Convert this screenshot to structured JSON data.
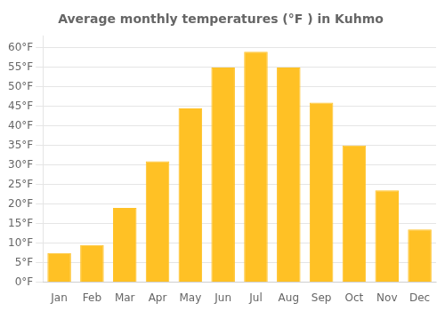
{
  "chart_data": {
    "type": "bar",
    "title": "Average monthly temperatures (°F ) in Kuhmo",
    "categories": [
      "Jan",
      "Feb",
      "Mar",
      "Apr",
      "May",
      "Jun",
      "Jul",
      "Aug",
      "Sep",
      "Oct",
      "Nov",
      "Dec"
    ],
    "values": [
      7.5,
      9.5,
      19,
      31,
      44.5,
      55,
      59,
      55,
      46,
      35,
      23.5,
      13.5
    ],
    "color": "#FFC125",
    "ylim": [
      0,
      63
    ],
    "yticks": [
      {
        "value": 0,
        "label": "0°F"
      },
      {
        "value": 5,
        "label": "5°F"
      },
      {
        "value": 10,
        "label": "10°F"
      },
      {
        "value": 15,
        "label": "15°F"
      },
      {
        "value": 20,
        "label": "20°F"
      },
      {
        "value": 25,
        "label": "25°F"
      },
      {
        "value": 30,
        "label": "30°F"
      },
      {
        "value": 35,
        "label": "35°F"
      },
      {
        "value": 40,
        "label": "40°F"
      },
      {
        "value": 45,
        "label": "45°F"
      },
      {
        "value": 50,
        "label": "50°F"
      },
      {
        "value": 55,
        "label": "55°F"
      },
      {
        "value": 60,
        "label": "60°F"
      }
    ],
    "grid": true
  }
}
